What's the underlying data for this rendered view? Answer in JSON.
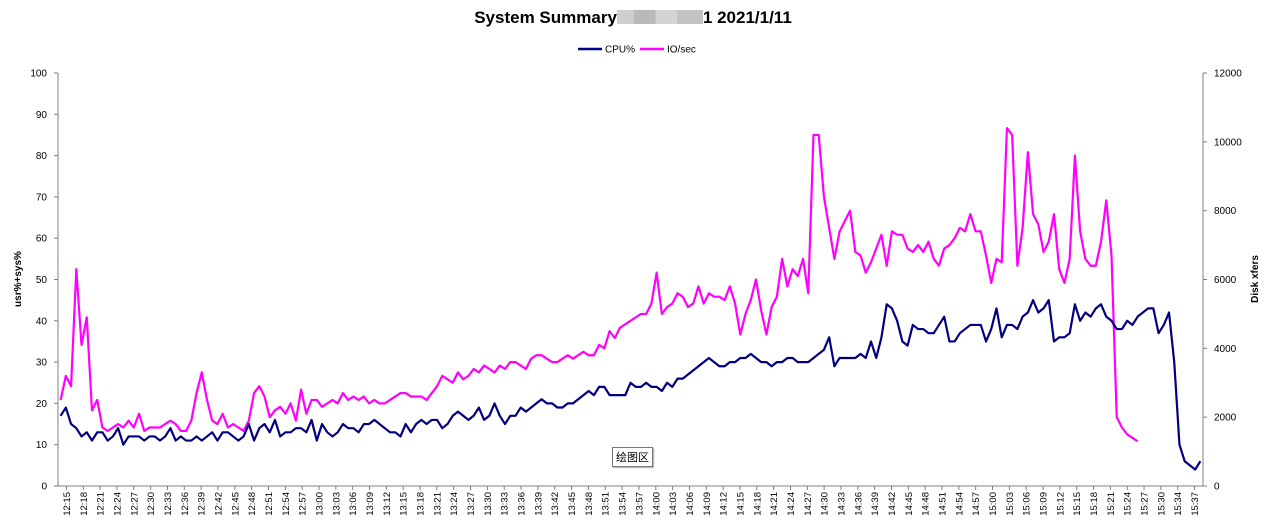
{
  "title": {
    "prefix": "System Summary",
    "suffix": "1  2021/1/11"
  },
  "plot_area_tag": "绘图区",
  "colors": {
    "cpu": "#000080",
    "io": "#ff00ff",
    "axis": "#808080",
    "background": "#ffffff"
  },
  "chart_data": {
    "type": "line",
    "title": "System Summary 1 2021/1/11",
    "ylabel": "usr%+sys%",
    "y2label": "Disk xfers",
    "ylim": [
      0,
      100
    ],
    "y2lim": [
      0,
      12000
    ],
    "yticks": [
      0,
      10,
      20,
      30,
      40,
      50,
      60,
      70,
      80,
      90,
      100
    ],
    "y2ticks": [
      0,
      2000,
      4000,
      6000,
      8000,
      10000,
      12000
    ],
    "legend_position": "top-center",
    "grid": false,
    "xticks": [
      "12:15",
      "12:18",
      "12:21",
      "12:24",
      "12:27",
      "12:30",
      "12:33",
      "12:36",
      "12:39",
      "12:42",
      "12:45",
      "12:48",
      "12:51",
      "12:54",
      "12:57",
      "13:00",
      "13:03",
      "13:06",
      "13:09",
      "13:12",
      "13:15",
      "13:18",
      "13:21",
      "13:24",
      "13:27",
      "13:30",
      "13:33",
      "13:36",
      "13:39",
      "13:42",
      "13:45",
      "13:48",
      "13:51",
      "13:54",
      "13:57",
      "14:00",
      "14:03",
      "14:06",
      "14:09",
      "14:12",
      "14:15",
      "14:18",
      "14:21",
      "14:24",
      "14:27",
      "14:30",
      "14:33",
      "14:36",
      "14:39",
      "14:42",
      "14:45",
      "14:48",
      "14:51",
      "14:54",
      "14:57",
      "15:00",
      "15:03",
      "15:06",
      "15:09",
      "15:12",
      "15:15",
      "15:18",
      "15:21",
      "15:24",
      "15:27",
      "15:30",
      "15:34",
      "15:37"
    ],
    "series": [
      {
        "name": "CPU%",
        "axis": "left",
        "values": [
          17,
          19,
          15,
          14,
          12,
          13,
          11,
          13,
          13,
          11,
          12,
          14,
          10,
          12,
          12,
          12,
          11,
          12,
          12,
          11,
          12,
          14,
          11,
          12,
          11,
          11,
          12,
          11,
          12,
          13,
          11,
          13,
          13,
          12,
          11,
          12,
          15,
          11,
          14,
          15,
          13,
          16,
          12,
          13,
          13,
          14,
          14,
          13,
          16,
          11,
          15,
          13,
          12,
          13,
          15,
          14,
          14,
          13,
          15,
          15,
          16,
          15,
          14,
          13,
          13,
          12,
          15,
          13,
          15,
          16,
          15,
          16,
          16,
          14,
          15,
          17,
          18,
          17,
          16,
          17,
          19,
          16,
          17,
          20,
          17,
          15,
          17,
          17,
          19,
          18,
          19,
          20,
          21,
          20,
          20,
          19,
          19,
          20,
          20,
          21,
          22,
          23,
          22,
          24,
          24,
          22,
          22,
          22,
          22,
          25,
          24,
          24,
          25,
          24,
          24,
          23,
          25,
          24,
          26,
          26,
          27,
          28,
          29,
          30,
          31,
          30,
          29,
          29,
          30,
          30,
          31,
          31,
          32,
          31,
          30,
          30,
          29,
          30,
          30,
          31,
          31,
          30,
          30,
          30,
          31,
          32,
          33,
          36,
          29,
          31,
          31,
          31,
          31,
          32,
          31,
          35,
          31,
          36,
          44,
          43,
          40,
          35,
          34,
          39,
          38,
          38,
          37,
          37,
          39,
          41,
          35,
          35,
          37,
          38,
          39,
          39,
          39,
          35,
          38,
          43,
          36,
          39,
          39,
          38,
          41,
          42,
          45,
          42,
          43,
          45,
          35,
          36,
          36,
          37,
          44,
          40,
          42,
          41,
          43,
          44,
          41,
          40,
          38,
          38,
          40,
          39,
          41,
          42,
          43,
          43,
          37,
          39,
          42,
          30,
          10,
          6,
          5,
          4,
          6
        ]
      },
      {
        "name": "IO/sec",
        "axis": "right",
        "values": [
          2500,
          3200,
          2900,
          6300,
          4100,
          4900,
          2200,
          2500,
          1700,
          1600,
          1700,
          1800,
          1700,
          1900,
          1700,
          2100,
          1600,
          1700,
          1700,
          1700,
          1800,
          1900,
          1800,
          1600,
          1600,
          1900,
          2700,
          3300,
          2500,
          1900,
          1800,
          2100,
          1700,
          1800,
          1700,
          1600,
          1900,
          2700,
          2900,
          2600,
          2000,
          2200,
          2300,
          2100,
          2400,
          1900,
          2800,
          2100,
          2500,
          2500,
          2300,
          2400,
          2500,
          2400,
          2700,
          2500,
          2600,
          2500,
          2600,
          2400,
          2500,
          2400,
          2400,
          2500,
          2600,
          2700,
          2700,
          2600,
          2600,
          2600,
          2500,
          2700,
          2900,
          3200,
          3100,
          3000,
          3300,
          3100,
          3200,
          3400,
          3300,
          3500,
          3400,
          3300,
          3500,
          3400,
          3600,
          3600,
          3500,
          3400,
          3700,
          3800,
          3800,
          3700,
          3600,
          3600,
          3700,
          3800,
          3700,
          3800,
          3900,
          3800,
          3800,
          4100,
          4000,
          4500,
          4300,
          4600,
          4700,
          4800,
          4900,
          5000,
          5000,
          5300,
          6200,
          5000,
          5200,
          5300,
          5600,
          5500,
          5200,
          5300,
          5800,
          5300,
          5600,
          5500,
          5500,
          5400,
          5800,
          5300,
          4400,
          5000,
          5400,
          6000,
          5100,
          4400,
          5200,
          5500,
          6600,
          5800,
          6300,
          6100,
          6600,
          5600,
          10200,
          10200,
          8400,
          7500,
          6600,
          7400,
          7700,
          8000,
          6800,
          6700,
          6200,
          6500,
          6900,
          7300,
          6400,
          7400,
          7300,
          7300,
          6900,
          6800,
          7000,
          6800,
          7100,
          6600,
          6400,
          6900,
          7000,
          7200,
          7500,
          7400,
          7900,
          7400,
          7400,
          6700,
          5900,
          6600,
          6500,
          10400,
          10200,
          6400,
          7500,
          9700,
          7900,
          7600,
          6800,
          7100,
          7900,
          6300,
          5900,
          6600,
          9600,
          7400,
          6600,
          6400,
          6400,
          7100,
          8300,
          6700,
          2000,
          1700,
          1500,
          1400,
          1300
        ]
      }
    ]
  }
}
